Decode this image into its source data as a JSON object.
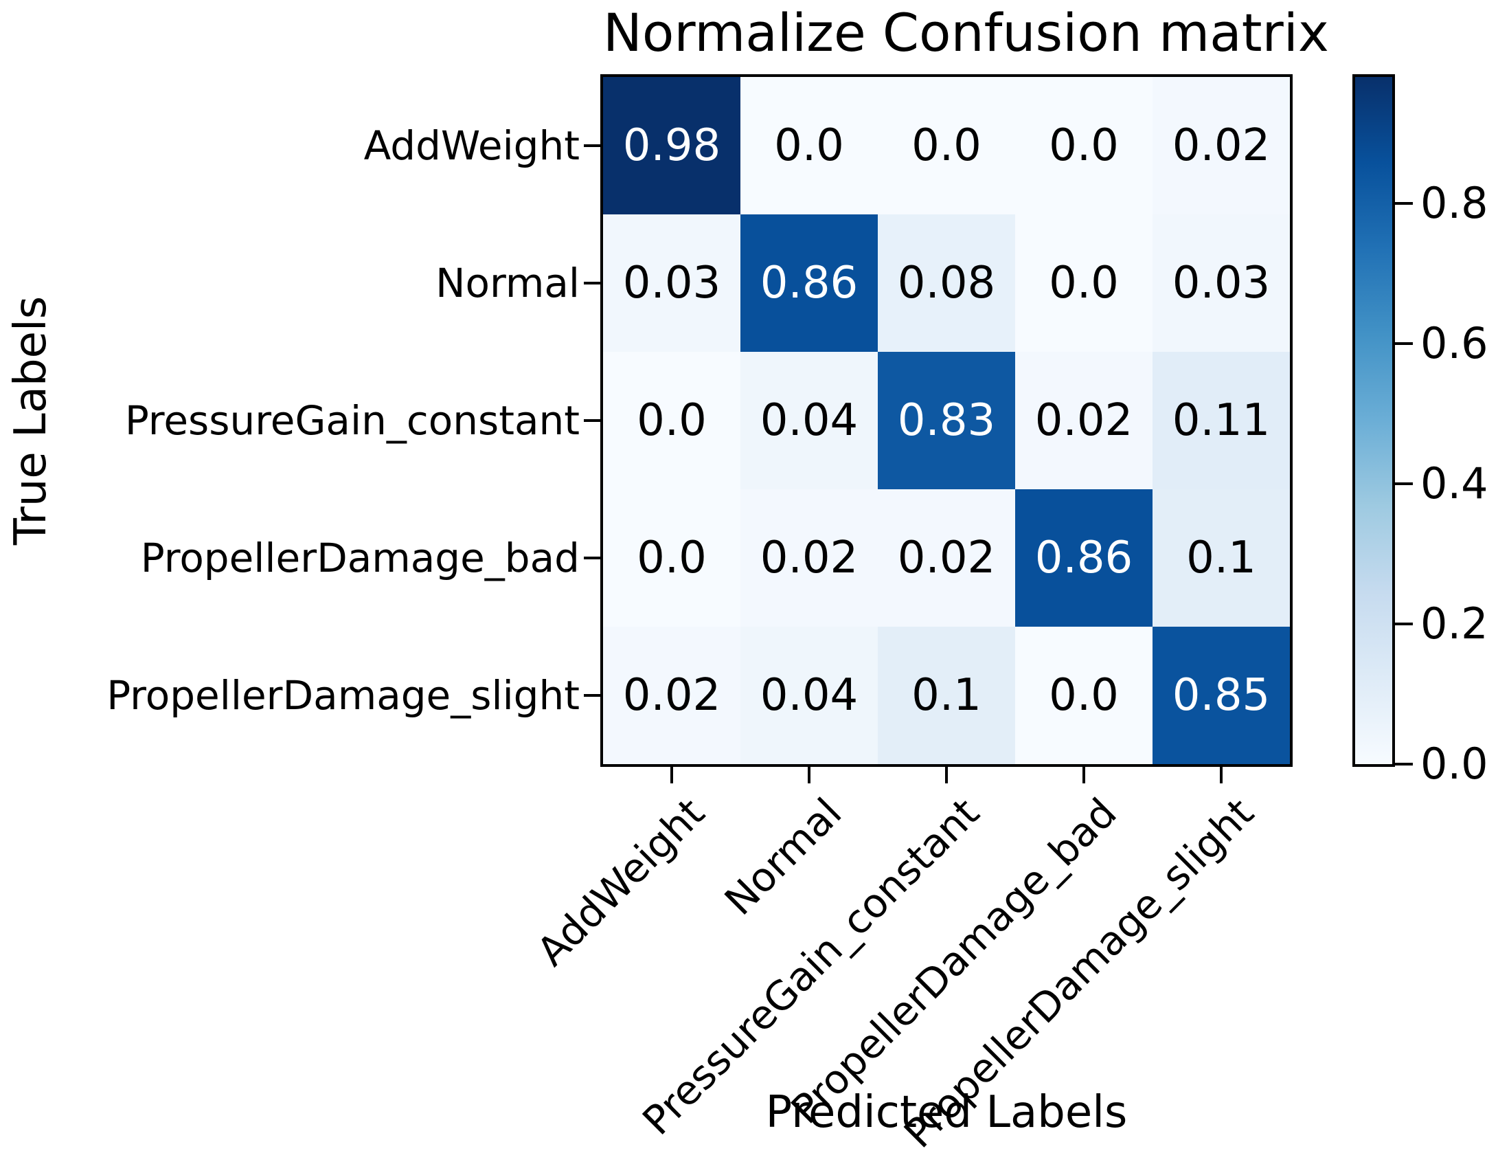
{
  "title": "Normalize Confusion matrix",
  "x_axis_label": "Predicted Labels",
  "y_axis_label": "True Labels",
  "chart_data": {
    "type": "heatmap",
    "title": "Normalize Confusion matrix",
    "xlabel": "Predicted Labels",
    "ylabel": "True Labels",
    "x_categories": [
      "AddWeight",
      "Normal",
      "PressureGain_constant",
      "PropellerDamage_bad",
      "PropellerDamage_slight"
    ],
    "y_categories": [
      "AddWeight",
      "Normal",
      "PressureGain_constant",
      "PropellerDamage_bad",
      "PropellerDamage_slight"
    ],
    "values": [
      [
        0.98,
        0.0,
        0.0,
        0.0,
        0.02
      ],
      [
        0.03,
        0.86,
        0.08,
        0.0,
        0.03
      ],
      [
        0.0,
        0.04,
        0.83,
        0.02,
        0.11
      ],
      [
        0.0,
        0.02,
        0.02,
        0.86,
        0.1
      ],
      [
        0.02,
        0.04,
        0.1,
        0.0,
        0.85
      ]
    ],
    "cell_labels": [
      [
        "0.98",
        "0.0",
        "0.0",
        "0.0",
        "0.02"
      ],
      [
        "0.03",
        "0.86",
        "0.08",
        "0.0",
        "0.03"
      ],
      [
        "0.0",
        "0.04",
        "0.83",
        "0.02",
        "0.11"
      ],
      [
        "0.0",
        "0.02",
        "0.02",
        "0.86",
        "0.1"
      ],
      [
        "0.02",
        "0.04",
        "0.1",
        "0.0",
        "0.85"
      ]
    ],
    "colormap": "Blues",
    "vmin": 0.0,
    "vmax": 0.98,
    "grid": false,
    "colorbar_position": "right",
    "colorbar_ticks": [
      0.8,
      0.6,
      0.4,
      0.2,
      0.0
    ],
    "colorbar_tick_labels": [
      "0.8",
      "0.6",
      "0.4",
      "0.2",
      "0.0"
    ]
  },
  "colors": {
    "cmap_anchors": [
      "#f7fbff",
      "#deebf7",
      "#c6dbef",
      "#9ecae1",
      "#6baed6",
      "#4292c6",
      "#2171b5",
      "#08519c",
      "#08306b"
    ],
    "cell_text_dark": "#000000",
    "cell_text_light": "#ffffff",
    "spine": "#000000"
  }
}
